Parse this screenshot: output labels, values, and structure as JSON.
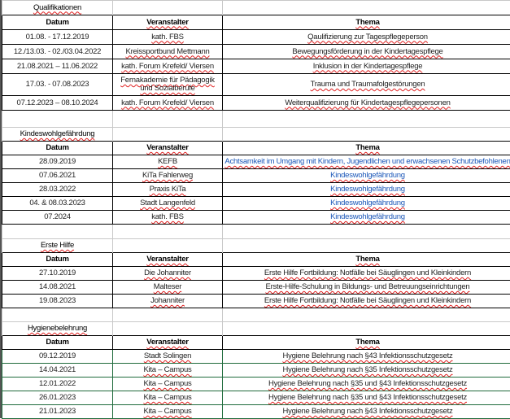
{
  "sections": [
    {
      "title": "Qualifikationen",
      "headers": [
        "Datum",
        "Veranstalter",
        "Thema"
      ],
      "heights": [
        18,
        18,
        18,
        18,
        18,
        27,
        18
      ],
      "green": false,
      "theme_color": "#222222",
      "rows": [
        [
          "01.08. - 17.12.2019",
          "kath. FBS",
          "Qaulifizierung zur Tagespflegeperson"
        ],
        [
          "12./13.03. - 02./03.04.2022",
          "Kreissportbund Mettmann",
          "Bewegungsförderung in der Kindertagespflege"
        ],
        [
          "21.08.2021 – 11.06.2022",
          "kath. Forum Krefeld/ Viersen",
          "Inklusion in der Kindertagespflege"
        ],
        [
          "17.03. - 07.08.2023",
          "Fernakademie für Pädagogik und Sozialberufe",
          "Trauma und Traumafolgestörungen"
        ],
        [
          "07.12.2023 – 08.10.2024",
          "kath. Forum Krefeld/ Viersen",
          "Weiterqualifizierung für Kindertagespflegepersonen"
        ]
      ]
    },
    {
      "title": "Kindeswohlgefährdung",
      "headers": [
        "Datum",
        "Veranstalter",
        "Thema"
      ],
      "heights": [
        17,
        17,
        17,
        17,
        17,
        17,
        17
      ],
      "green": false,
      "theme_color": "#1a56b8",
      "rows": [
        [
          "28.09.2019",
          "KEFB",
          "Achtsamkeit im Umgang mit Kindern, Jugendlichen und erwachsenen Schutzbefohlenen"
        ],
        [
          "07.06.2021",
          "KiTa Fahlerweg",
          "Kindeswohlgefährdung"
        ],
        [
          "28.03.2022",
          "Praxis KiTa",
          "Kindeswohlgefährdung"
        ],
        [
          "04. & 08.03.2023",
          "Stadt Langenfeld",
          "Kindeswohlgefährdung"
        ],
        [
          "07.2024",
          "kath. FBS",
          "Kindeswohlgefährdung"
        ]
      ]
    },
    {
      "title": "Erste Hilfe",
      "headers": [
        "Datum",
        "Veranstalter",
        "Thema"
      ],
      "heights": [
        17,
        17,
        17,
        17,
        17
      ],
      "green": false,
      "theme_color": "#222222",
      "rows": [
        [
          "27.10.2019",
          "Die Johanniter",
          "Erste Hilfe Fortbildung: Notfälle bei Säuglingen und Kleinkindern"
        ],
        [
          "14.08.2021",
          "Malteser",
          "Erste-Hilfe-Schulung in Bildungs- und Betreuungseinrichtungen"
        ],
        [
          "19.08.2023",
          "Johanniter",
          "Erste Hilfe Fortbildung: Notfälle bei Säuglingen und Kleinkindern"
        ]
      ]
    },
    {
      "title": "Hygienebelehrung",
      "headers": [
        "Datum",
        "Veranstalter",
        "Thema"
      ],
      "heights": [
        17,
        17,
        17,
        17,
        17,
        17,
        17
      ],
      "green": true,
      "theme_color": "#222222",
      "rows": [
        [
          "09.12.2019",
          "Stadt Solingen",
          "Hygiene Belehrung nach §43 Infektionsschutzgesetz"
        ],
        [
          "14.04.2021",
          "Kita – Campus",
          "Hygiene Belehrung nach §35 Infektionsschutzgesetz"
        ],
        [
          "12.01.2022",
          "Kita – Campus",
          "Hygiene Belehrung nach §35 und §43 Infektionsschutzgesetz"
        ],
        [
          "26.01.2023",
          "Kita – Campus",
          "Hygiene Belehrung nach §35 und §43 Infektionsschutzgesetz"
        ],
        [
          "21.01.2023",
          "Kita – Campus",
          "Hygiene Belehrung nach §43 Infektionsschutzgesetz"
        ]
      ]
    }
  ],
  "empty_row_heights": [
    21,
    18,
    17
  ]
}
